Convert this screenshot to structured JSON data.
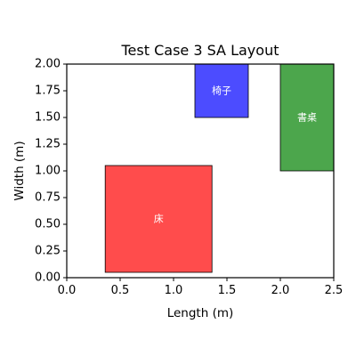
{
  "chart_data": {
    "type": "rectangles",
    "title": "Test Case 3 SA Layout",
    "xlabel": "Length (m)",
    "ylabel": "Width (m)",
    "xlim": [
      0,
      2.5
    ],
    "ylim": [
      0,
      2.0
    ],
    "xticks": [
      "0.0",
      "0.5",
      "1.0",
      "1.5",
      "2.0",
      "2.5"
    ],
    "yticks": [
      "0.00",
      "0.25",
      "0.50",
      "0.75",
      "1.00",
      "1.25",
      "1.50",
      "1.75",
      "2.00"
    ],
    "grid": false,
    "items": [
      {
        "label": "床",
        "x": 0.36,
        "y": 0.05,
        "width": 1.0,
        "height": 1.0,
        "color": "#ff4c4c"
      },
      {
        "label": "椅子",
        "x": 1.2,
        "y": 1.5,
        "width": 0.5,
        "height": 0.5,
        "color": "#4c4cff"
      },
      {
        "label": "書桌",
        "x": 2.0,
        "y": 1.0,
        "width": 0.5,
        "height": 1.0,
        "color": "#4ca64c"
      }
    ]
  }
}
